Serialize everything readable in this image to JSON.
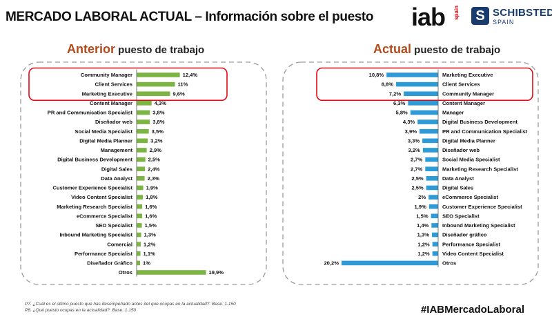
{
  "header": {
    "title": "MERCADO LABORAL ACTUAL – Información sobre el puesto",
    "logo_iab": "iab",
    "logo_iab_sub": "spain",
    "logo_schibsted": "SCHIBSTED",
    "logo_schibsted_sub": "SPAIN"
  },
  "colors": {
    "left_bar": "#7db544",
    "right_bar": "#2e9bd6",
    "highlight": "#e30613",
    "accent": "#b34a1c"
  },
  "chart_data": [
    {
      "type": "bar",
      "orientation": "horizontal",
      "title_accent": "Anterior",
      "title_rest": " puesto de trabajo",
      "categories": [
        "Community Manager",
        "Client Services",
        "Marketing Executive",
        "Content Manager",
        "PR and Communication Specialist",
        "Diseñador web",
        "Social Media Specialist",
        "Digital Media Planner",
        "Management",
        "Digital Business Development",
        "Digital Sales",
        "Data Analyst",
        "Customer Experience Specialist",
        "Video Content Specialist",
        "Marketing Research Specialist",
        "eCommerce Specialist",
        "SEO Specialist",
        "Inbound Marketing Specialist",
        "Comercial",
        "Performance Specialist",
        "Diseñador Gráfico",
        "Otros"
      ],
      "values": [
        12.4,
        11,
        9.6,
        4.3,
        3.8,
        3.8,
        3.5,
        3.2,
        2.9,
        2.5,
        2.4,
        2.3,
        1.9,
        1.8,
        1.6,
        1.6,
        1.5,
        1.3,
        1.2,
        1.1,
        1,
        19.9
      ],
      "labels": [
        "12,4%",
        "11%",
        "9,6%",
        "4,3%",
        "3,8%",
        "3,8%",
        "3,5%",
        "3,2%",
        "2,9%",
        "2,5%",
        "2,4%",
        "2,3%",
        "1,9%",
        "1,8%",
        "1,6%",
        "1,6%",
        "1,5%",
        "1,3%",
        "1,2%",
        "1,1%",
        "1%",
        "19,9%"
      ],
      "highlighted": 3
    },
    {
      "type": "bar",
      "orientation": "horizontal",
      "title_accent": "Actual",
      "title_rest": " puesto de trabajo",
      "categories": [
        "Marketing Executive",
        "Client Services",
        "Community Manager",
        "Content Manager",
        "Manager",
        "Digital Business Development",
        "PR and Communication Specialist",
        "Digital Media Planner",
        "Diseñador web",
        "Social Media Specialist",
        "Marketing Research Specialist",
        "Data Analyst",
        "Digital Sales",
        "eCommerce Specialist",
        "Customer Experience Specialist",
        "SEO Specialist",
        "Inbound Marketing Specialist",
        "Diseñador gráfico",
        "Performance Specialist",
        "Video Content Specialist",
        "Otros"
      ],
      "values": [
        10.8,
        8.8,
        7.2,
        6.3,
        5.8,
        4.3,
        3.9,
        3.3,
        3.2,
        2.7,
        2.7,
        2.5,
        2.5,
        2,
        1.9,
        1.5,
        1.4,
        1.3,
        1.2,
        1.2,
        20.2
      ],
      "labels": [
        "10,8%",
        "8,8%",
        "7,2%",
        "6,3%",
        "5,8%",
        "4,3%",
        "3,9%",
        "3,3%",
        "3,2%",
        "2,7%",
        "2,7%",
        "2,5%",
        "2,5%",
        "2%",
        "1,9%",
        "1,5%",
        "1,4%",
        "1,3%",
        "1,2%",
        "1,2%",
        "20,2%"
      ],
      "highlighted": 3
    }
  ],
  "footnotes": [
    "P7. ¿Cuál es el último puesto que has desempeñado antes del que ocupas en la actualidad?: Base: 1.150",
    "P8. ¿Qué  puesto ocupas en la actualidad?: Base: 1.150"
  ],
  "hashtag": "#IABMercadoLaboral"
}
